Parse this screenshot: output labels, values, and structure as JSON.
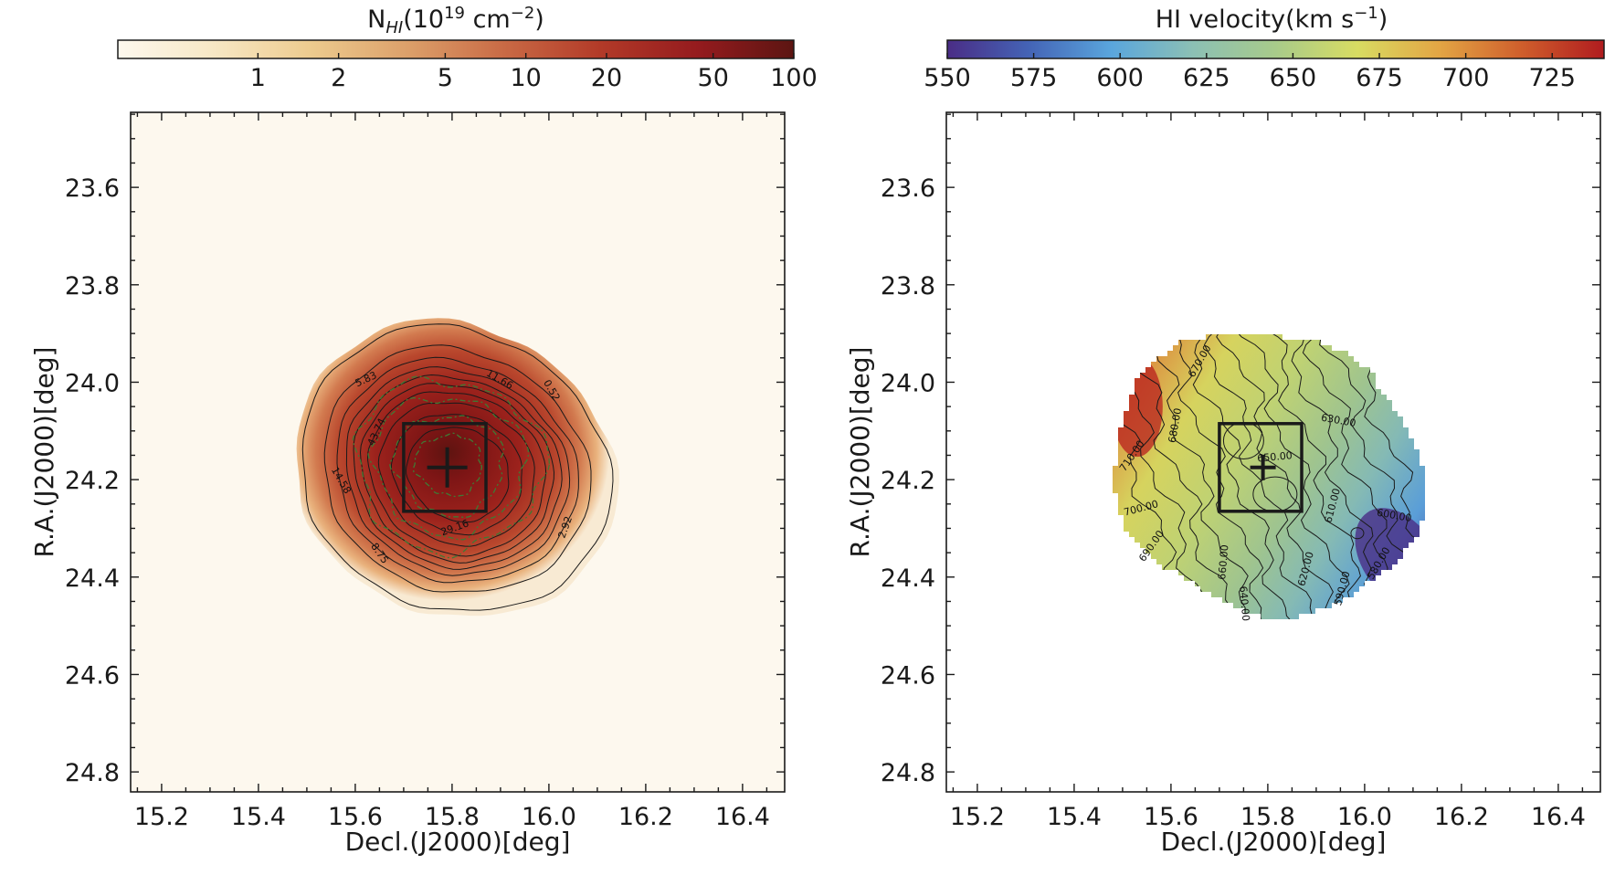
{
  "chart_data": [
    {
      "type": "heatmap",
      "panel": "left",
      "title": "",
      "colorbar": {
        "title_main": "N",
        "title_sub": "HI",
        "title_rest": "(10",
        "title_exp": "19",
        "title_unit": " cm",
        "title_unit_exp": "−2",
        "title_close": ")",
        "scale": "log",
        "range": [
          0.3,
          100
        ],
        "ticks": [
          1,
          2,
          5,
          10,
          20,
          50,
          100
        ],
        "tick_labels": [
          "1",
          "2",
          "5",
          "10",
          "20",
          "50",
          "100"
        ],
        "colormap": "OrRd-like",
        "stops": [
          "#fdf8ee",
          "#f7e7c4",
          "#edcb8e",
          "#dca06a",
          "#c96a45",
          "#b23a28",
          "#951b1e",
          "#5c1512"
        ]
      },
      "xlabel": "Decl.(J2000)[deg]",
      "ylabel": "R.A.(J2000)[deg]",
      "xlim": [
        15.136,
        16.487
      ],
      "ylim": [
        24.841,
        23.446
      ],
      "x_ticks": [
        15.2,
        15.4,
        15.6,
        15.8,
        16.0,
        16.2,
        16.4
      ],
      "x_tick_labels": [
        "15.2",
        "15.4",
        "15.6",
        "15.8",
        "16.0",
        "16.2",
        "16.4"
      ],
      "y_ticks": [
        23.6,
        23.8,
        24.0,
        24.2,
        24.4,
        24.6,
        24.8
      ],
      "y_tick_labels": [
        "23.6",
        "23.8",
        "24.0",
        "24.2",
        "24.4",
        "24.6",
        "24.8"
      ],
      "background_color": "#fdf8ee",
      "source_center": [
        15.79,
        24.175
      ],
      "source_extent_x": [
        15.49,
        16.11
      ],
      "source_extent_y": [
        23.88,
        24.48
      ],
      "contour_levels": [
        0.52,
        2.92,
        5.83,
        8.75,
        11.66,
        14.58,
        29.16,
        43.74
      ],
      "contour_labels": [
        {
          "text": "0.52",
          "x": 16.0,
          "y": 24.02,
          "angle": 60
        },
        {
          "text": "2.92",
          "x": 16.04,
          "y": 24.3,
          "angle": -70
        },
        {
          "text": "5.83",
          "x": 15.625,
          "y": 24.0,
          "angle": -25
        },
        {
          "text": "8.75",
          "x": 15.645,
          "y": 24.355,
          "angle": 55
        },
        {
          "text": "11.66",
          "x": 15.895,
          "y": 24.0,
          "angle": 30
        },
        {
          "text": "14.58",
          "x": 15.565,
          "y": 24.205,
          "angle": 60
        },
        {
          "text": "29.16",
          "x": 15.808,
          "y": 24.305,
          "angle": -20
        },
        {
          "text": "43.74",
          "x": 15.65,
          "y": 24.105,
          "angle": -65
        }
      ],
      "overlay_contours_color": "#3f7a34",
      "box": {
        "x": [
          15.7,
          15.87
        ],
        "y": [
          24.085,
          24.265
        ]
      },
      "cross": {
        "x": 15.79,
        "y": 24.175
      }
    },
    {
      "type": "heatmap",
      "panel": "right",
      "title": "",
      "colorbar": {
        "title": "HI velocity(km s",
        "title_exp": "−1",
        "title_close": ")",
        "scale": "linear",
        "range": [
          550,
          740
        ],
        "ticks": [
          550,
          575,
          600,
          625,
          650,
          675,
          700,
          725
        ],
        "tick_labels": [
          "550",
          "575",
          "600",
          "625",
          "650",
          "675",
          "700",
          "725"
        ],
        "colormap": "Spectral_r-like",
        "stops": [
          "#4a2d86",
          "#4464b6",
          "#5aa6dd",
          "#8cc0b4",
          "#a8cb8a",
          "#d8dc62",
          "#e3a544",
          "#cf5e2c",
          "#b01c1f"
        ]
      },
      "xlabel": "Decl.(J2000)[deg]",
      "ylabel": "R.A.(J2000)[deg]",
      "xlim": [
        15.136,
        16.487
      ],
      "ylim": [
        24.841,
        23.446
      ],
      "x_ticks": [
        15.2,
        15.4,
        15.6,
        15.8,
        16.0,
        16.2,
        16.4
      ],
      "x_tick_labels": [
        "15.2",
        "15.4",
        "15.6",
        "15.8",
        "16.0",
        "16.2",
        "16.4"
      ],
      "y_ticks": [
        23.6,
        23.8,
        24.0,
        24.2,
        24.4,
        24.6,
        24.8
      ],
      "y_tick_labels": [
        "23.6",
        "23.8",
        "24.0",
        "24.2",
        "24.4",
        "24.6",
        "24.8"
      ],
      "background_color": "#ffffff",
      "velocity_field": {
        "gradient_direction": "east-to-west",
        "west_value": 720,
        "east_value": 570,
        "max_region": {
          "x": 15.53,
          "y": 24.05,
          "value": 728
        },
        "min_region": {
          "x": 16.07,
          "y": 24.36,
          "value": 560
        }
      },
      "contour_levels": [
        580,
        590,
        600,
        610,
        620,
        630,
        640,
        650,
        660,
        670,
        680,
        690,
        700,
        710
      ],
      "contour_labels": [
        {
          "text": "710.00",
          "x": 15.525,
          "y": 24.155,
          "angle": -55
        },
        {
          "text": "700.00",
          "x": 15.54,
          "y": 24.265,
          "angle": -15
        },
        {
          "text": "690.00",
          "x": 15.565,
          "y": 24.34,
          "angle": -55
        },
        {
          "text": "680.00",
          "x": 15.615,
          "y": 24.09,
          "angle": -80
        },
        {
          "text": "670.00",
          "x": 15.665,
          "y": 23.96,
          "angle": -60
        },
        {
          "text": "660.00",
          "x": 15.715,
          "y": 24.37,
          "angle": -85
        },
        {
          "text": "650.00",
          "x": 15.815,
          "y": 24.16,
          "angle": -5
        },
        {
          "text": "640.00",
          "x": 15.745,
          "y": 24.455,
          "angle": 85
        },
        {
          "text": "630.00",
          "x": 15.945,
          "y": 24.085,
          "angle": 10
        },
        {
          "text": "620.00",
          "x": 15.885,
          "y": 24.385,
          "angle": -75
        },
        {
          "text": "610.00",
          "x": 15.94,
          "y": 24.255,
          "angle": -75
        },
        {
          "text": "600.00",
          "x": 16.06,
          "y": 24.28,
          "angle": 10
        },
        {
          "text": "590.00",
          "x": 15.96,
          "y": 24.425,
          "angle": -75
        },
        {
          "text": "580.00",
          "x": 16.035,
          "y": 24.375,
          "angle": -60
        }
      ],
      "box": {
        "x": [
          15.7,
          15.87
        ],
        "y": [
          24.085,
          24.265
        ]
      },
      "cross": {
        "x": 15.79,
        "y": 24.175
      }
    }
  ]
}
